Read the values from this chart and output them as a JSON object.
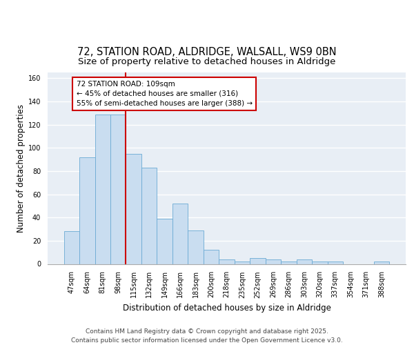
{
  "title_line1": "72, STATION ROAD, ALDRIDGE, WALSALL, WS9 0BN",
  "title_line2": "Size of property relative to detached houses in Aldridge",
  "xlabel": "Distribution of detached houses by size in Aldridge",
  "ylabel": "Number of detached properties",
  "categories": [
    "47sqm",
    "64sqm",
    "81sqm",
    "98sqm",
    "115sqm",
    "132sqm",
    "149sqm",
    "166sqm",
    "183sqm",
    "200sqm",
    "218sqm",
    "235sqm",
    "252sqm",
    "269sqm",
    "286sqm",
    "303sqm",
    "320sqm",
    "337sqm",
    "354sqm",
    "371sqm",
    "388sqm"
  ],
  "values": [
    28,
    92,
    129,
    129,
    95,
    83,
    39,
    52,
    29,
    12,
    4,
    2,
    5,
    4,
    2,
    4,
    2,
    2,
    0,
    0,
    2
  ],
  "bar_color": "#c9ddf0",
  "bar_edge_color": "#6aaad4",
  "vline_x": 3.5,
  "vline_color": "#cc0000",
  "annotation_text": "72 STATION ROAD: 109sqm\n← 45% of detached houses are smaller (316)\n55% of semi-detached houses are larger (388) →",
  "annotation_box_color": "white",
  "annotation_box_edge_color": "#cc0000",
  "ylim": [
    0,
    165
  ],
  "yticks": [
    0,
    20,
    40,
    60,
    80,
    100,
    120,
    140,
    160
  ],
  "background_color": "#e8eef5",
  "grid_color": "white",
  "footer_line1": "Contains HM Land Registry data © Crown copyright and database right 2025.",
  "footer_line2": "Contains public sector information licensed under the Open Government Licence v3.0.",
  "title_fontsize": 10.5,
  "subtitle_fontsize": 9.5,
  "axis_label_fontsize": 8.5,
  "tick_fontsize": 7,
  "annotation_fontsize": 7.5,
  "footer_fontsize": 6.5
}
